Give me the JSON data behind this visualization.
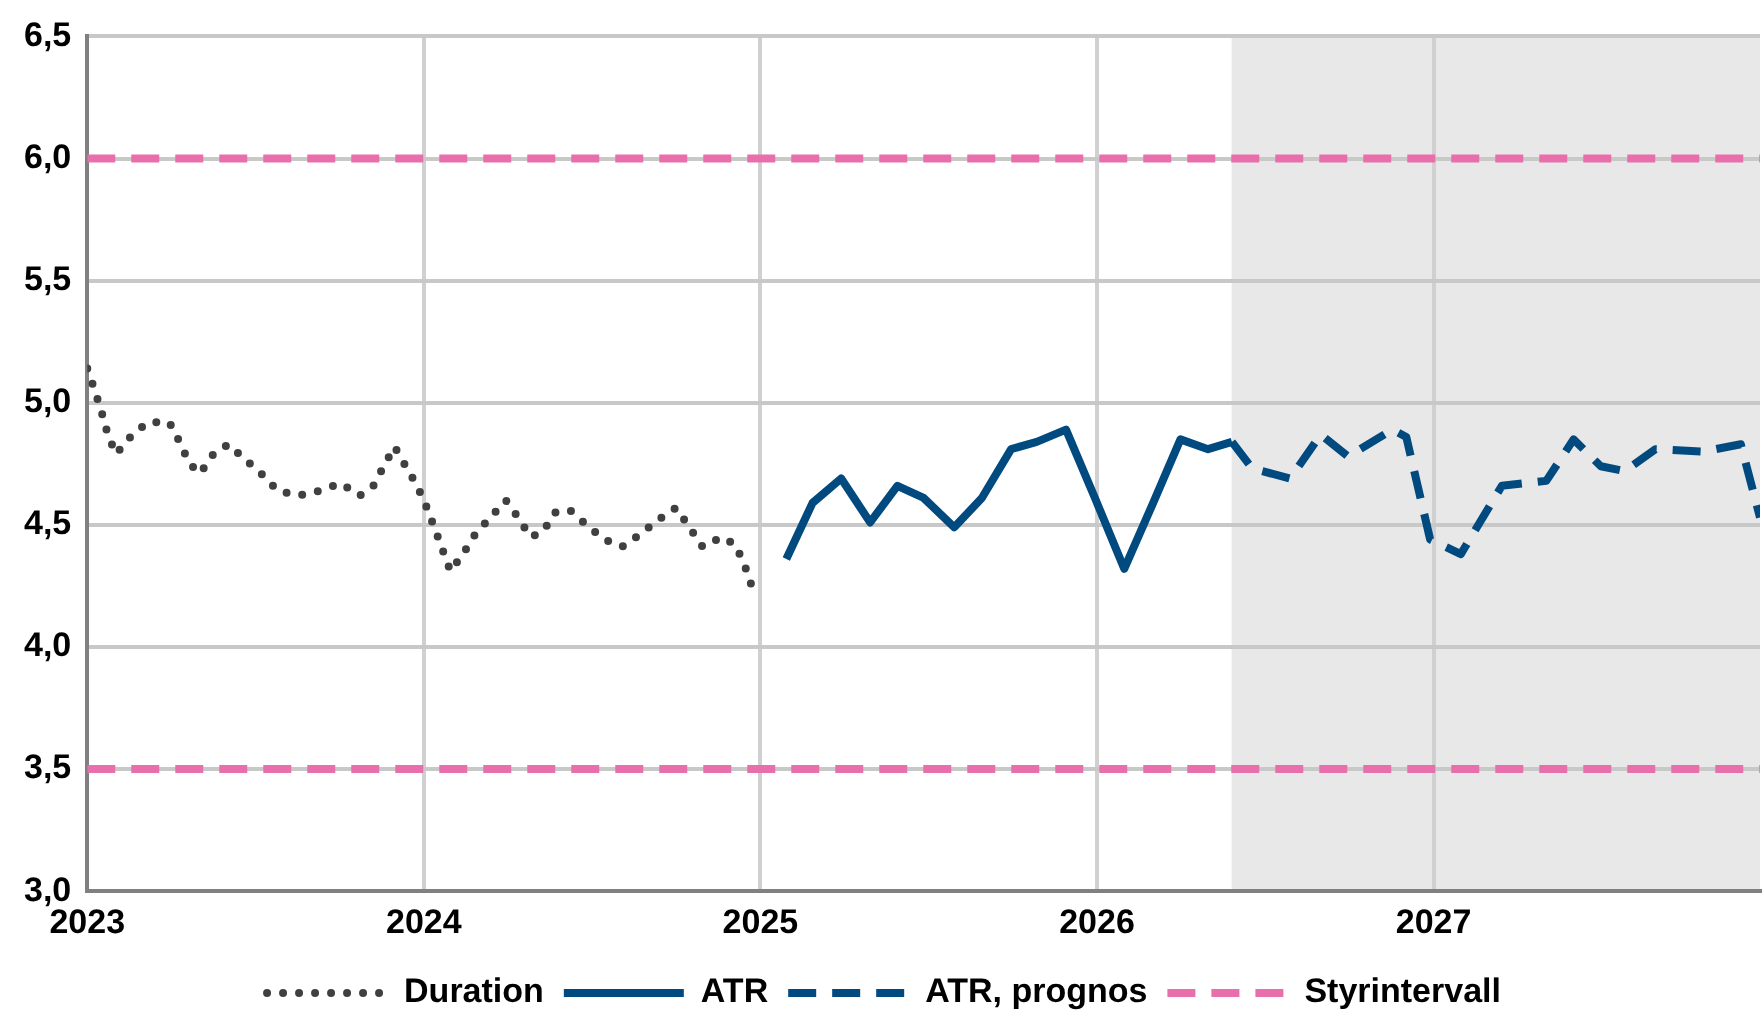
{
  "chart_data": {
    "type": "line",
    "xlim": [
      2023,
      2027.97
    ],
    "xticks": [
      2023,
      2024,
      2025,
      2026,
      2027
    ],
    "ylim": [
      3,
      6.5
    ],
    "yticks": [
      {
        "value": 3,
        "label": "3,0"
      },
      {
        "value": 3.5,
        "label": "3,5"
      },
      {
        "value": 4,
        "label": "4,0"
      },
      {
        "value": 4.5,
        "label": "4,5"
      },
      {
        "value": 5,
        "label": "5,0"
      },
      {
        "value": 5.5,
        "label": "5,5"
      },
      {
        "value": 6,
        "label": "6,0"
      },
      {
        "value": 6.5,
        "label": "6,5"
      }
    ],
    "grid": true,
    "legend": "bottom",
    "marker": "none",
    "series": [
      {
        "name": "Duration",
        "color": "#404040",
        "line_style": "dotted",
        "x": [
          2023.0,
          2023.02,
          2023.041,
          2023.061,
          2023.085,
          2023.128,
          2023.179,
          2023.244,
          2023.274,
          2023.304,
          2023.335,
          2023.375,
          2023.42,
          2023.467,
          2023.517,
          2023.566,
          2023.629,
          2023.692,
          2023.753,
          2023.81,
          2023.85,
          2023.881,
          2023.913,
          2023.946,
          2023.98,
          2024.006,
          2024.031,
          2024.055,
          2024.079,
          2024.116,
          2024.152,
          2024.197,
          2024.244,
          2024.28,
          2024.317,
          2024.353,
          2024.39,
          2024.434,
          2024.483,
          2024.536,
          2024.589,
          2024.641,
          2024.696,
          2024.749,
          2024.789,
          2024.828,
          2024.885,
          2024.925,
          2024.952,
          2024.974
        ],
        "values": [
          5.14,
          5.06,
          4.97,
          4.87,
          4.79,
          4.86,
          4.92,
          4.92,
          4.84,
          4.75,
          4.71,
          4.79,
          4.83,
          4.77,
          4.71,
          4.64,
          4.62,
          4.64,
          4.67,
          4.62,
          4.66,
          4.74,
          4.82,
          4.74,
          4.66,
          4.58,
          4.49,
          4.4,
          4.31,
          4.38,
          4.46,
          4.53,
          4.6,
          4.53,
          4.45,
          4.47,
          4.55,
          4.56,
          4.5,
          4.44,
          4.41,
          4.46,
          4.52,
          4.57,
          4.49,
          4.41,
          4.45,
          4.42,
          4.34,
          4.25
        ]
      },
      {
        "name": "ATR",
        "color": "#004a80",
        "line_style": "solid",
        "x": [
          2025.077,
          2025.155,
          2025.24,
          2025.326,
          2025.407,
          2025.485,
          2025.576,
          2025.658,
          2025.745,
          2025.821,
          2025.908,
          2025.994,
          2026.081,
          2026.167,
          2026.248,
          2026.33,
          2026.401
        ],
        "values": [
          4.36,
          4.59,
          4.69,
          4.51,
          4.66,
          4.61,
          4.49,
          4.61,
          4.81,
          4.84,
          4.89,
          4.61,
          4.32,
          4.59,
          4.85,
          4.81,
          4.84
        ]
      },
      {
        "name": "ATR, prognos",
        "color": "#004a80",
        "line_style": "dashed",
        "x": [
          2026.401,
          2026.462,
          2026.574,
          2026.665,
          2026.746,
          2026.878,
          2026.919,
          2026.99,
          2027.081,
          2027.203,
          2027.335,
          2027.416,
          2027.497,
          2027.568,
          2027.659,
          2027.801,
          2027.913,
          2027.97
        ],
        "values": [
          4.84,
          4.73,
          4.69,
          4.87,
          4.78,
          4.89,
          4.86,
          4.44,
          4.38,
          4.66,
          4.68,
          4.85,
          4.74,
          4.72,
          4.81,
          4.8,
          4.83,
          4.53
        ]
      },
      {
        "name": "Styrintervall",
        "color": "#e86fac",
        "line_style": "dashed",
        "x": [
          2023,
          2027.97
        ],
        "values": [
          6,
          6
        ]
      },
      {
        "color": "#e86fac",
        "line_style": "dashed",
        "x": [
          2023,
          2027.97
        ],
        "values": [
          3.5,
          3.5
        ]
      }
    ],
    "bands": [
      {
        "axis": "x",
        "from": 2026.4,
        "to": 2027.97,
        "color": "#e8e8e8"
      }
    ]
  }
}
